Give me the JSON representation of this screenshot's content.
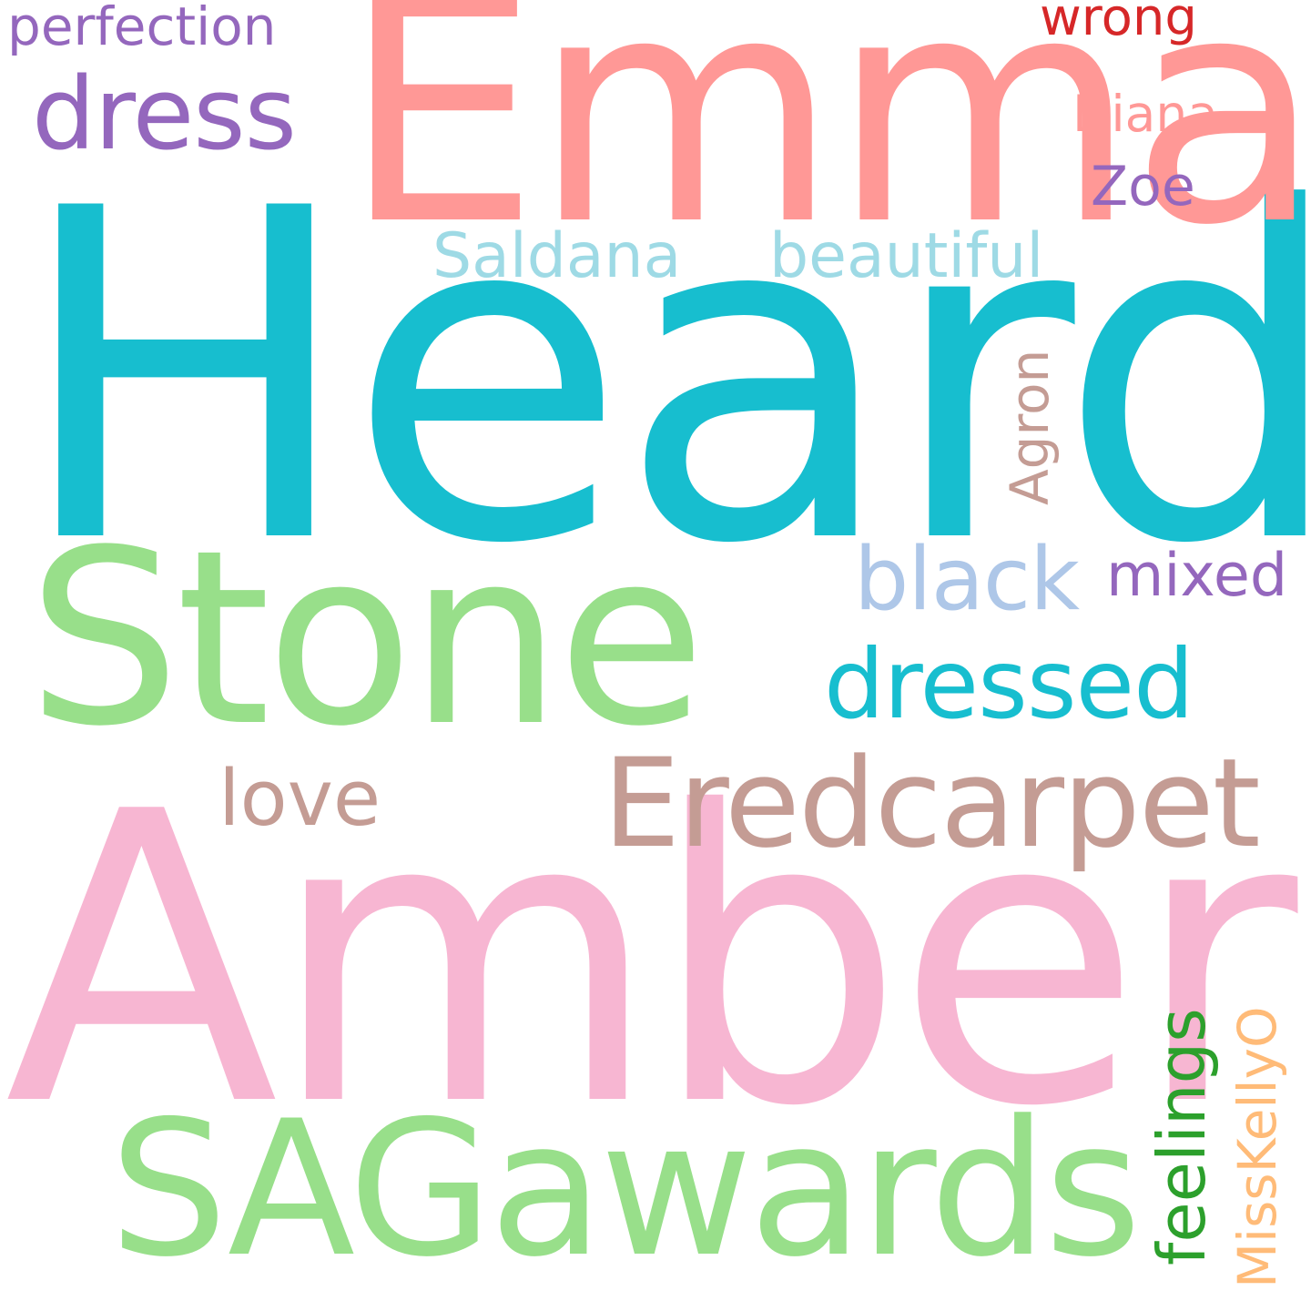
{
  "words": {
    "heard": {
      "text": "Heard",
      "color": "#17becf"
    },
    "emma": {
      "text": "Emma",
      "color": "#ff9896"
    },
    "amber": {
      "text": "Amber",
      "color": "#f7b6d2"
    },
    "stone": {
      "text": "Stone",
      "color": "#98df8a"
    },
    "sagawards": {
      "text": "SAGawards",
      "color": "#98df8a"
    },
    "eredcarpet": {
      "text": "Eredcarpet",
      "color": "#c49c94"
    },
    "dress": {
      "text": "dress",
      "color": "#9467bd"
    },
    "dressed": {
      "text": "dressed",
      "color": "#17becf"
    },
    "black": {
      "text": "black",
      "color": "#aec7e8"
    },
    "love": {
      "text": "love",
      "color": "#c49c94"
    },
    "mixed": {
      "text": "mixed",
      "color": "#9467bd"
    },
    "beautiful": {
      "text": "beautiful",
      "color": "#9edae5"
    },
    "saldana": {
      "text": "Saldana",
      "color": "#9edae5"
    },
    "perfection": {
      "text": "perfection",
      "color": "#9467bd"
    },
    "zoe": {
      "text": "Zoe",
      "color": "#9467bd"
    },
    "diana": {
      "text": "Diana",
      "color": "#ff9896"
    },
    "wrong": {
      "text": "wrong",
      "color": "#d62728"
    },
    "agron": {
      "text": "Agron",
      "color": "#c49c94"
    },
    "feelings": {
      "text": "feelings",
      "color": "#2ca02c"
    },
    "misskelly": {
      "text": "MissKellyO",
      "color": "#ffbb78"
    }
  }
}
